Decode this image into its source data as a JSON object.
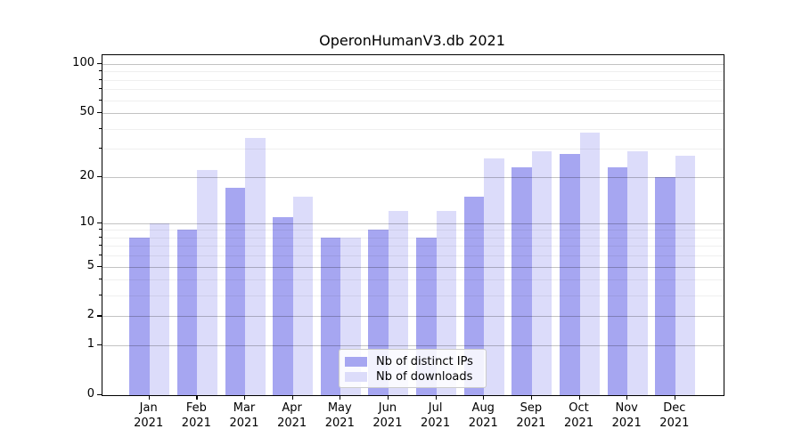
{
  "title": "OperonHumanV3.db 2021",
  "chart_data": {
    "type": "bar",
    "title": "OperonHumanV3.db 2021",
    "categories": [
      {
        "month": "Jan",
        "year": "2021"
      },
      {
        "month": "Feb",
        "year": "2021"
      },
      {
        "month": "Mar",
        "year": "2021"
      },
      {
        "month": "Apr",
        "year": "2021"
      },
      {
        "month": "May",
        "year": "2021"
      },
      {
        "month": "Jun",
        "year": "2021"
      },
      {
        "month": "Jul",
        "year": "2021"
      },
      {
        "month": "Aug",
        "year": "2021"
      },
      {
        "month": "Sep",
        "year": "2021"
      },
      {
        "month": "Oct",
        "year": "2021"
      },
      {
        "month": "Nov",
        "year": "2021"
      },
      {
        "month": "Dec",
        "year": "2021"
      }
    ],
    "series": [
      {
        "key": "distinct-ips",
        "name": "Nb of distinct IPs",
        "color": "#a6a6f1",
        "values": [
          8,
          9,
          17,
          11,
          8,
          9,
          8,
          15,
          23,
          28,
          23,
          20
        ]
      },
      {
        "key": "downloads",
        "name": "Nb of downloads",
        "color": "#dcdcfa",
        "values": [
          10,
          22,
          35,
          15,
          8,
          12,
          12,
          26,
          29,
          38,
          29,
          27
        ]
      }
    ],
    "xlabel": "",
    "ylabel": "",
    "yscale": "log(v+1)",
    "ylim": [
      0,
      113
    ],
    "yticks_major": [
      0,
      1,
      2,
      5,
      10,
      20,
      50,
      100
    ],
    "yticks_minor": [
      3,
      4,
      6,
      7,
      8,
      9,
      30,
      40,
      60,
      70,
      80,
      90
    ],
    "grid": "on",
    "legend_position": "lower center"
  },
  "colors": {
    "grid_major": "#c3c3c3",
    "grid_minor": "#efefef",
    "spine": "#000000",
    "background": "#ffffff"
  }
}
